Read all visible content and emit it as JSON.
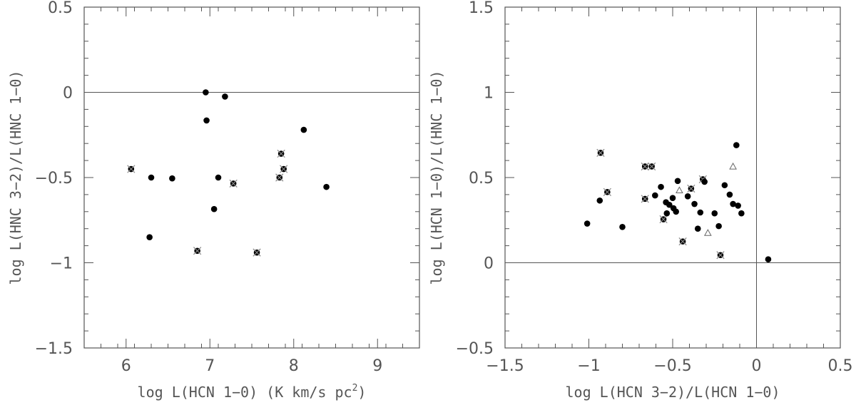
{
  "chart_data": [
    {
      "type": "scatter",
      "xlabel_main": "log L(HCN 1−0) (K km/s pc",
      "xlabel_sup": "2",
      "xlabel_end": ")",
      "ylabel": "log L(HNC 3−2)/L(HNC 1−0)",
      "xlim": [
        5.5,
        9.5
      ],
      "ylim": [
        -1.5,
        0.5
      ],
      "xticks": [
        6,
        7,
        8,
        9
      ],
      "xtick_labels": [
        "6",
        "7",
        "8",
        "9"
      ],
      "xminor_step": 0.2,
      "yticks": [
        -1.5,
        -1,
        -0.5,
        0,
        0.5
      ],
      "ytick_labels": [
        "−1.5",
        "−1",
        "−0.5",
        "0",
        "0.5"
      ],
      "yminor_step": 0.1,
      "hlines": [
        0
      ],
      "vlines": [],
      "points": [
        {
          "x": 6.06,
          "y": -0.45,
          "marked": true
        },
        {
          "x": 6.3,
          "y": -0.5,
          "marked": false
        },
        {
          "x": 6.55,
          "y": -0.505,
          "marked": false
        },
        {
          "x": 6.28,
          "y": -0.85,
          "marked": false
        },
        {
          "x": 6.85,
          "y": -0.93,
          "marked": true
        },
        {
          "x": 6.95,
          "y": 0.0,
          "marked": false
        },
        {
          "x": 6.96,
          "y": -0.165,
          "marked": false
        },
        {
          "x": 7.05,
          "y": -0.685,
          "marked": false
        },
        {
          "x": 7.1,
          "y": -0.5,
          "marked": false
        },
        {
          "x": 7.18,
          "y": -0.025,
          "marked": false
        },
        {
          "x": 7.28,
          "y": -0.535,
          "marked": true
        },
        {
          "x": 7.56,
          "y": -0.94,
          "marked": true
        },
        {
          "x": 7.83,
          "y": -0.5,
          "marked": true
        },
        {
          "x": 7.85,
          "y": -0.36,
          "marked": true
        },
        {
          "x": 7.88,
          "y": -0.45,
          "marked": true
        },
        {
          "x": 8.12,
          "y": -0.22,
          "marked": false
        },
        {
          "x": 8.39,
          "y": -0.555,
          "marked": false
        }
      ],
      "triangles": []
    },
    {
      "type": "scatter",
      "xlabel_main": "log L(HCN 3−2)/L(HCN 1−0)",
      "xlabel_sup": "",
      "xlabel_end": "",
      "ylabel": "log L(HCN 1−0)/L(HNC 1−0)",
      "xlim": [
        -1.5,
        0.5
      ],
      "ylim": [
        -0.5,
        1.5
      ],
      "xticks": [
        -1.5,
        -1,
        -0.5,
        0,
        0.5
      ],
      "xtick_labels": [
        "−1.5",
        "−1",
        "−0.5",
        "0",
        "0.5"
      ],
      "xminor_step": 0.1,
      "yticks": [
        -0.5,
        0,
        0.5,
        1,
        1.5
      ],
      "ytick_labels": [
        "−0.5",
        "0",
        "0.5",
        "1",
        "1.5"
      ],
      "yminor_step": 0.1,
      "hlines": [
        0
      ],
      "vlines": [
        0
      ],
      "points": [
        {
          "x": -1.01,
          "y": 0.23,
          "marked": false
        },
        {
          "x": -0.93,
          "y": 0.645,
          "marked": true
        },
        {
          "x": -0.935,
          "y": 0.365,
          "marked": false
        },
        {
          "x": -0.89,
          "y": 0.415,
          "marked": true
        },
        {
          "x": -0.8,
          "y": 0.21,
          "marked": false
        },
        {
          "x": -0.665,
          "y": 0.565,
          "marked": true
        },
        {
          "x": -0.625,
          "y": 0.565,
          "marked": true
        },
        {
          "x": -0.665,
          "y": 0.375,
          "marked": true
        },
        {
          "x": -0.605,
          "y": 0.395,
          "marked": false
        },
        {
          "x": -0.57,
          "y": 0.445,
          "marked": false
        },
        {
          "x": -0.555,
          "y": 0.255,
          "marked": true
        },
        {
          "x": -0.54,
          "y": 0.355,
          "marked": false
        },
        {
          "x": -0.535,
          "y": 0.29,
          "marked": false
        },
        {
          "x": -0.52,
          "y": 0.34,
          "marked": false
        },
        {
          "x": -0.5,
          "y": 0.38,
          "marked": false
        },
        {
          "x": -0.495,
          "y": 0.32,
          "marked": false
        },
        {
          "x": -0.48,
          "y": 0.3,
          "marked": false
        },
        {
          "x": -0.47,
          "y": 0.48,
          "marked": false
        },
        {
          "x": -0.44,
          "y": 0.125,
          "marked": true
        },
        {
          "x": -0.41,
          "y": 0.39,
          "marked": false
        },
        {
          "x": -0.39,
          "y": 0.435,
          "marked": true
        },
        {
          "x": -0.37,
          "y": 0.345,
          "marked": false
        },
        {
          "x": -0.35,
          "y": 0.2,
          "marked": false
        },
        {
          "x": -0.335,
          "y": 0.295,
          "marked": false
        },
        {
          "x": -0.32,
          "y": 0.49,
          "marked": true
        },
        {
          "x": -0.31,
          "y": 0.475,
          "marked": false
        },
        {
          "x": -0.25,
          "y": 0.29,
          "marked": false
        },
        {
          "x": -0.225,
          "y": 0.215,
          "marked": false
        },
        {
          "x": -0.215,
          "y": 0.045,
          "marked": true
        },
        {
          "x": -0.19,
          "y": 0.455,
          "marked": false
        },
        {
          "x": -0.16,
          "y": 0.4,
          "marked": false
        },
        {
          "x": -0.14,
          "y": 0.345,
          "marked": false
        },
        {
          "x": -0.12,
          "y": 0.69,
          "marked": false
        },
        {
          "x": -0.11,
          "y": 0.335,
          "marked": false
        },
        {
          "x": -0.09,
          "y": 0.29,
          "marked": false
        },
        {
          "x": 0.07,
          "y": 0.02,
          "marked": false
        }
      ],
      "triangles": [
        {
          "x": -0.46,
          "y": 0.425
        },
        {
          "x": -0.29,
          "y": 0.175
        },
        {
          "x": -0.14,
          "y": 0.565
        }
      ]
    }
  ]
}
